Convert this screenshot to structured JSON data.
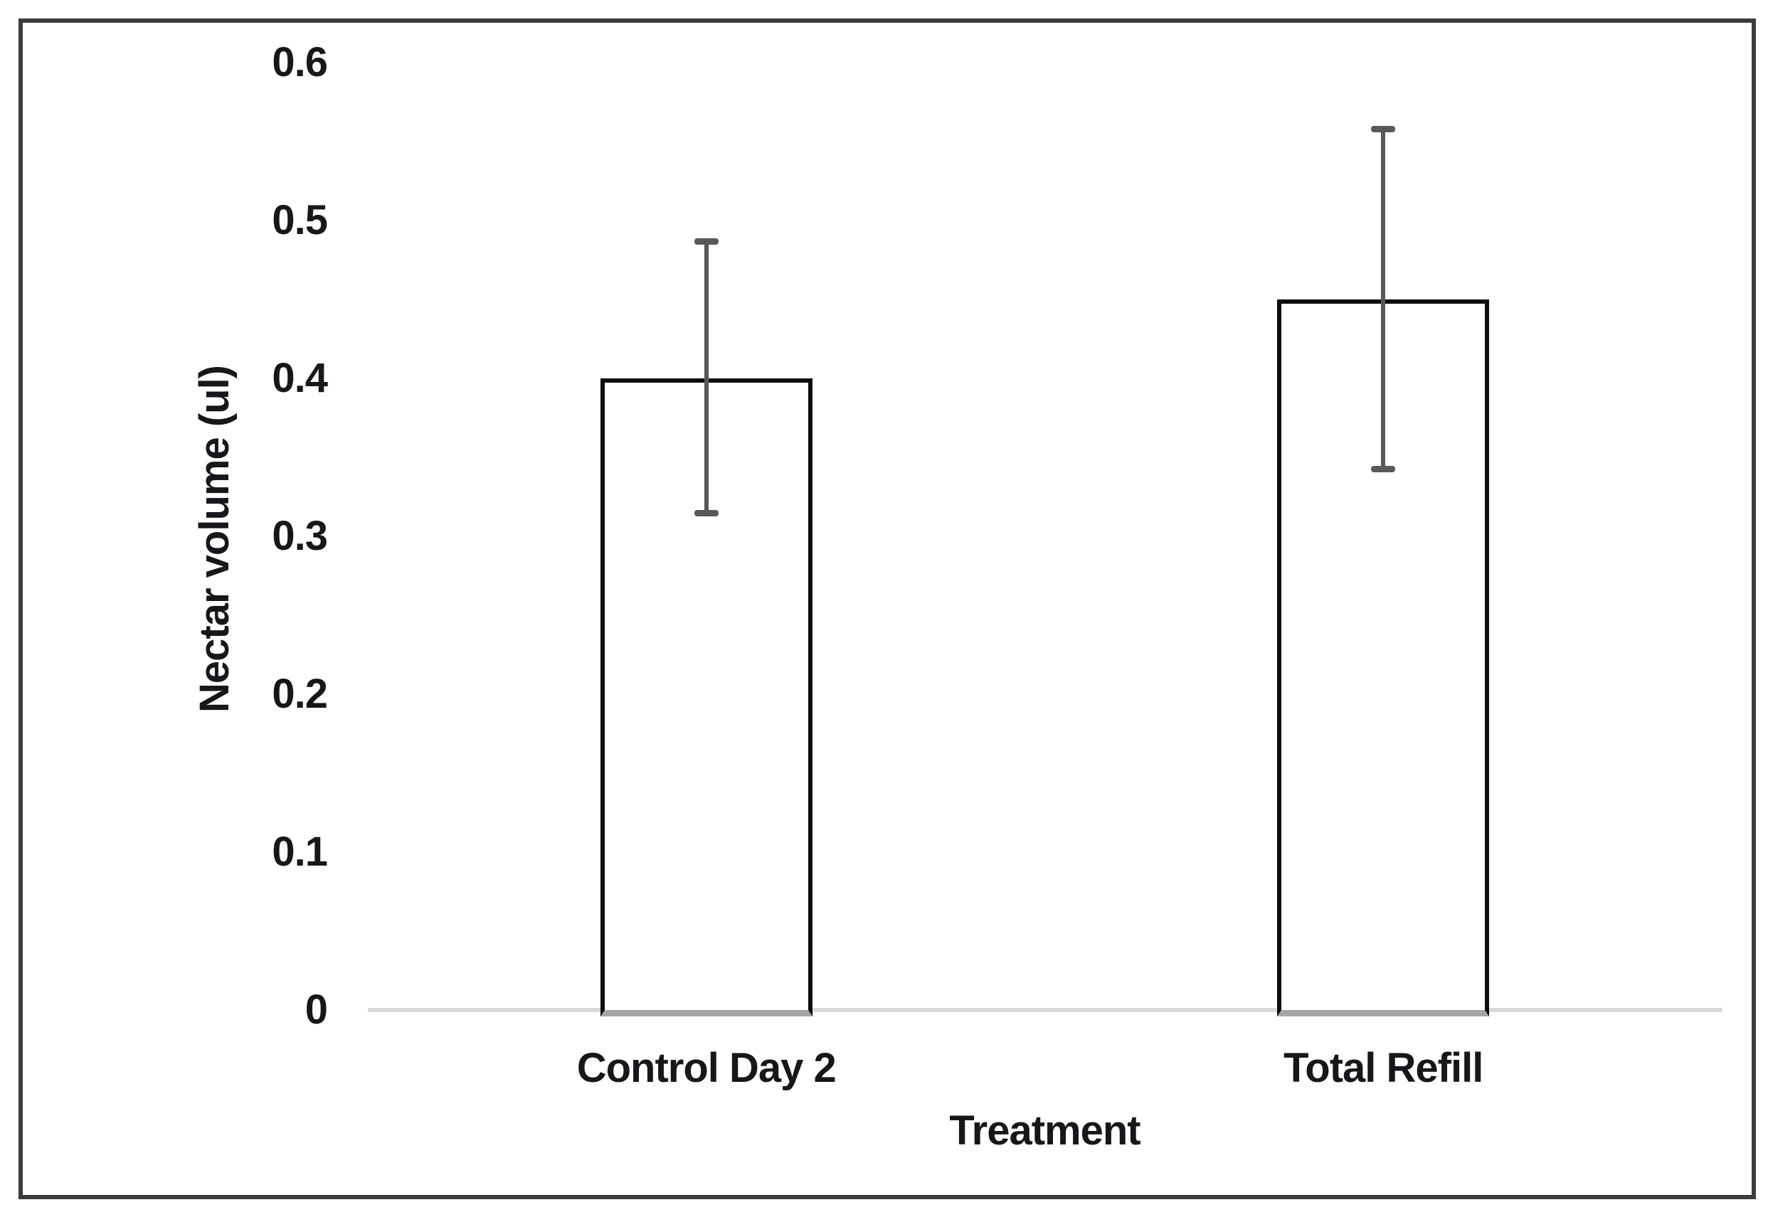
{
  "chart_data": {
    "type": "bar",
    "title": "",
    "categories": [
      "Control Day 2",
      "Total Refill"
    ],
    "values": [
      0.4,
      0.45
    ],
    "error_bars": [
      {
        "low": 0.315,
        "high": 0.487
      },
      {
        "low": 0.343,
        "high": 0.558
      }
    ],
    "xlabel": "Treatment",
    "ylabel": "Nectar volume (ul)",
    "ylim": [
      0,
      0.6
    ],
    "ytick_labels": [
      "0",
      "0.1",
      "0.2",
      "0.3",
      "0.4",
      "0.5",
      "0.6"
    ],
    "yticks": [
      0,
      0.1,
      0.2,
      0.3,
      0.4,
      0.5,
      0.6
    ],
    "grid": false,
    "legend": false,
    "bar_fill_color": "#ffffff",
    "bar_border_color": "#0d0d0d",
    "error_bar_color": "#595959",
    "axis_line_color": "#d9d9d9",
    "text_color": "#17171b",
    "frame_border_color": "#3c3c3c"
  }
}
